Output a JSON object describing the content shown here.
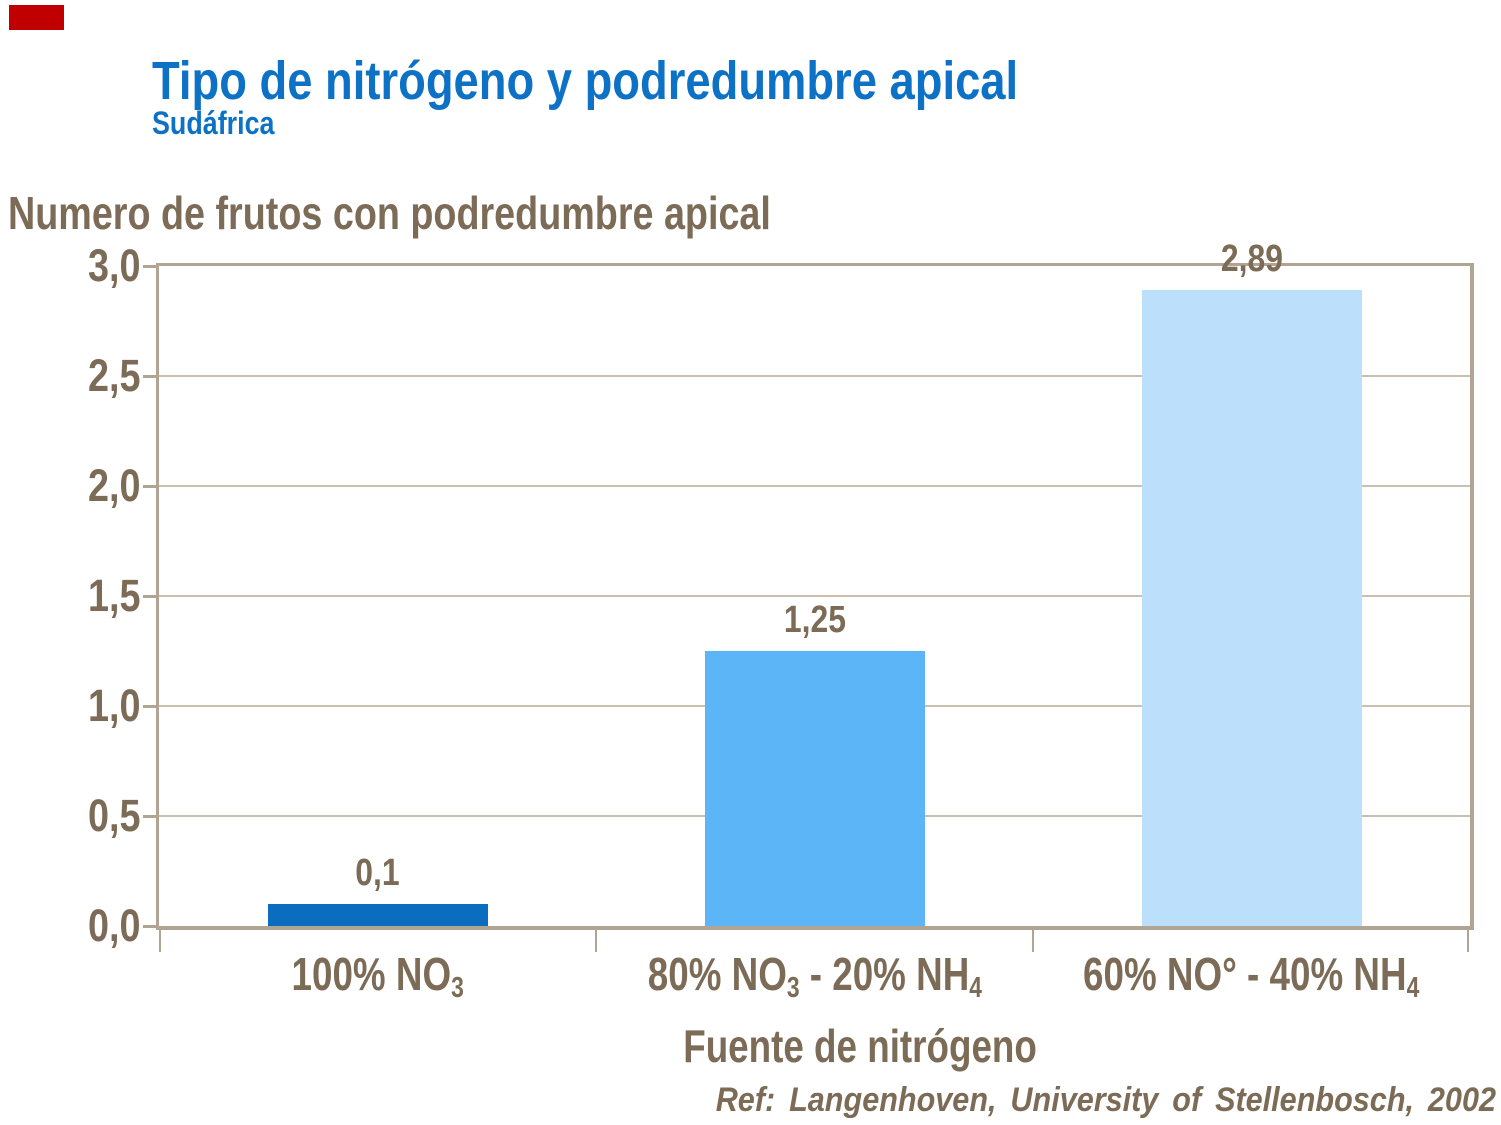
{
  "slide": {
    "title": "Tipo de nitrógeno y podredumbre apical",
    "subtitle": "Sudáfrica",
    "title_color": "#0d72c6",
    "accent_color": "#c00000"
  },
  "chart_data": {
    "type": "bar",
    "title": "Numero de frutos con podredumbre apical",
    "ylabel": "Numero de frutos con podredumbre apical",
    "xlabel": "Fuente de nitrógeno",
    "ylim": [
      0,
      3
    ],
    "ytick_step": 0.5,
    "grid": true,
    "legend_position": "none",
    "decimal_separator": ",",
    "text_color": "#7c6b56",
    "frame_color": "#b2a492",
    "grid_color": "#cabfb1",
    "yticks": [
      {
        "value": 3.0,
        "label": "3,0"
      },
      {
        "value": 2.5,
        "label": "2,5"
      },
      {
        "value": 2.0,
        "label": "2,0"
      },
      {
        "value": 1.5,
        "label": "1,5"
      },
      {
        "value": 1.0,
        "label": "1,0"
      },
      {
        "value": 0.5,
        "label": "0,5"
      },
      {
        "value": 0.0,
        "label": "0,0"
      }
    ],
    "categories": [
      "100% NO₃",
      "80% NO₃ - 20% NH₄",
      "60% NO° - 40% NH₄"
    ],
    "values": [
      0.1,
      1.25,
      2.89
    ],
    "bars": [
      {
        "category": "100% NO₃",
        "category_segments": [
          {
            "t": "100% NO"
          },
          {
            "t": "3",
            "sub": true
          }
        ],
        "value": 0.1,
        "value_label": "0,1",
        "color": "#0b6dbf"
      },
      {
        "category": "80% NO₃ - 20% NH₄",
        "category_segments": [
          {
            "t": "80% NO"
          },
          {
            "t": "3",
            "sub": true
          },
          {
            "t": " - 20% NH"
          },
          {
            "t": "4",
            "sub": true
          }
        ],
        "value": 1.25,
        "value_label": "1,25",
        "color": "#5bb5f7"
      },
      {
        "category": "60% NO° - 40% NH₄",
        "category_segments": [
          {
            "t": "60% NO° - 40% NH"
          },
          {
            "t": "4",
            "sub": true
          }
        ],
        "value": 2.89,
        "value_label": "2,89",
        "color": "#bcdffb"
      }
    ]
  },
  "footer": {
    "reference": "Ref: Langenhoven, University of Stellenbosch, 2002"
  }
}
